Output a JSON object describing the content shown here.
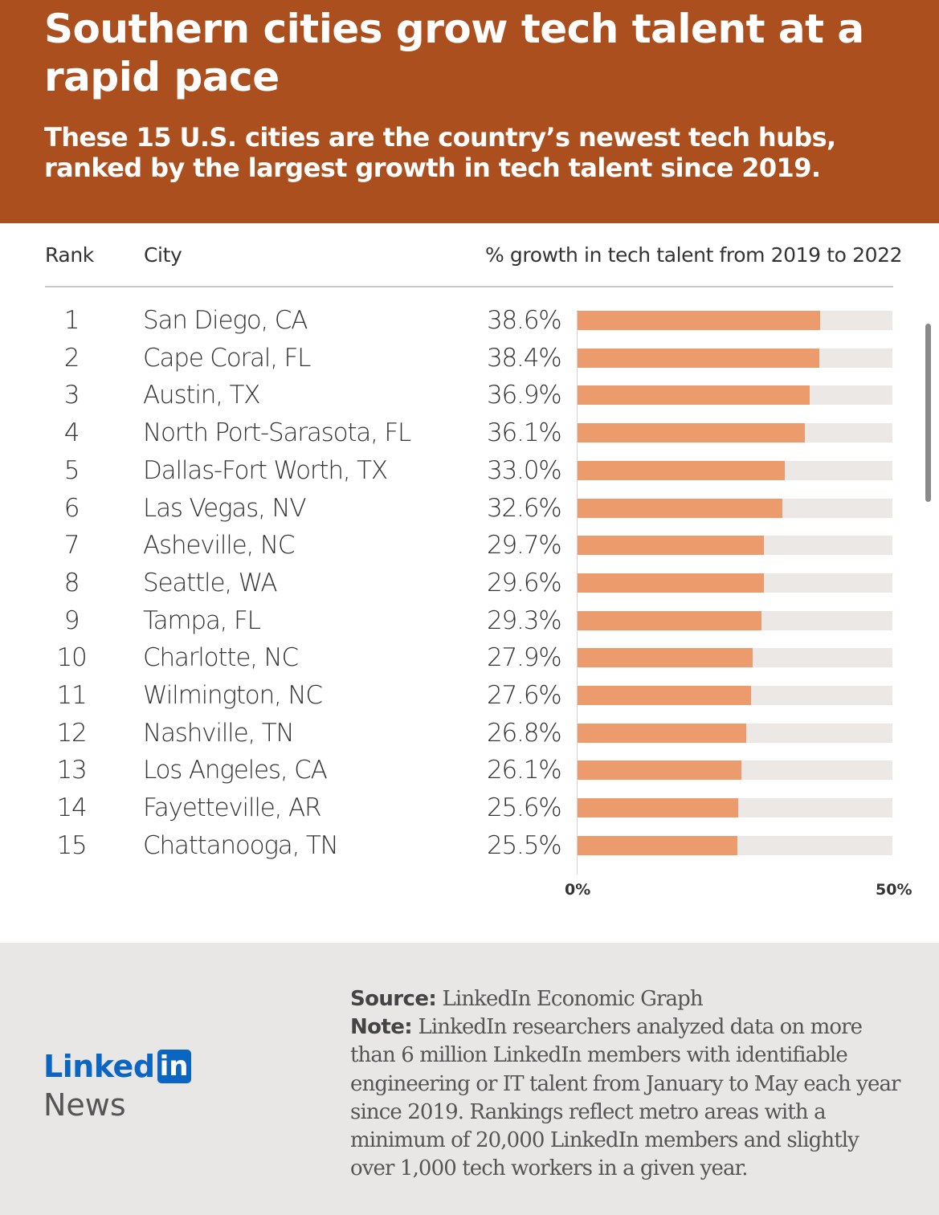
{
  "header": {
    "title": "Southern cities grow tech talent at a rapid pace",
    "subtitle": "These 15 U.S. cities are the country’s newest tech hubs, ranked by the largest growth in tech talent since 2019."
  },
  "table": {
    "col_rank": "Rank",
    "col_city": "City",
    "col_growth": "% growth in tech talent from 2019 to 2022",
    "ranks": [
      "1",
      "2",
      "3",
      "4",
      "5",
      "6",
      "7",
      "8",
      "9",
      "10",
      "11",
      "12",
      "13",
      "14",
      "15"
    ],
    "pct_labels": [
      "38.6%",
      "38.4%",
      "36.9%",
      "36.1%",
      "33.0%",
      "32.6%",
      "29.7%",
      "29.6%",
      "29.3%",
      "27.9%",
      "27.6%",
      "26.8%",
      "26.1%",
      "25.6%",
      "25.5%"
    ]
  },
  "chart_data": {
    "type": "bar",
    "orientation": "horizontal",
    "categories": [
      "San Diego, CA",
      "Cape Coral, FL",
      "Austin, TX",
      "North Port-Sarasota, FL",
      "Dallas-Fort Worth, TX",
      "Las Vegas, NV",
      "Asheville, NC",
      "Seattle, WA",
      "Tampa, FL",
      "Charlotte, NC",
      "Wilmington, NC",
      "Nashville, TN",
      "Los Angeles, CA",
      "Fayetteville, AR",
      "Chattanooga, TN"
    ],
    "values": [
      38.6,
      38.4,
      36.9,
      36.1,
      33.0,
      32.6,
      29.7,
      29.6,
      29.3,
      27.9,
      27.6,
      26.8,
      26.1,
      25.6,
      25.5
    ],
    "xlim": [
      0,
      50
    ],
    "xticks": [
      "0%",
      "50%"
    ],
    "xlabel": "% growth in tech talent from 2019 to 2022",
    "bar_color": "#ec9b6d",
    "track_color": "#ebe8e6"
  },
  "footer": {
    "source_label": "Source:",
    "source_text": "LinkedIn Economic Graph",
    "note_label": "Note:",
    "note_text": "LinkedIn researchers analyzed data on more than 6 million LinkedIn members with identifiable engineering or IT talent from January to May each year since 2019. Rankings reflect metro areas with a minimum of 20,000 LinkedIn members and slightly over 1,000 tech workers in a given year.",
    "logo_text": "Linked",
    "logo_in": "in",
    "logo_news": "News"
  },
  "colors": {
    "header_bg": "#ac4f1f",
    "footer_bg": "#e9e7e5",
    "brand": "#0a66c2"
  }
}
